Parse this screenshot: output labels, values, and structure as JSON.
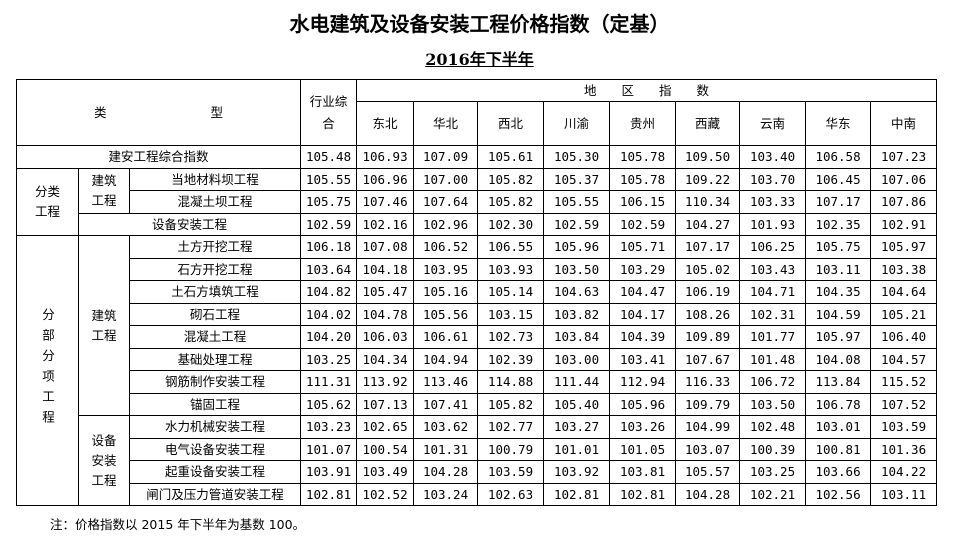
{
  "title": "水电建筑及设备安装工程价格指数（定基）",
  "subtitle": "2016年下半年",
  "header": {
    "type_col": [
      "类",
      "型"
    ],
    "industry": "行业综合",
    "region_group": "地　　区　　指　　数",
    "regions": [
      "东北",
      "华北",
      "西北",
      "川渝",
      "贵州",
      "西藏",
      "云南",
      "华东",
      "中南"
    ]
  },
  "groups": {
    "category": "分类工程",
    "sub_item": "分部分项工程",
    "building": "建筑工程",
    "equipment": "设备安装工程"
  },
  "rows": [
    {
      "name": "建安工程综合指数",
      "industry": "105.48",
      "values": [
        "106.93",
        "107.09",
        "105.61",
        "105.30",
        "105.78",
        "109.50",
        "103.40",
        "106.58",
        "107.23"
      ]
    },
    {
      "name": "当地材料坝工程",
      "industry": "105.55",
      "values": [
        "106.96",
        "107.00",
        "105.82",
        "105.37",
        "105.78",
        "109.22",
        "103.70",
        "106.45",
        "107.06"
      ]
    },
    {
      "name": "混凝土坝工程",
      "industry": "105.75",
      "values": [
        "107.46",
        "107.64",
        "105.82",
        "105.55",
        "106.15",
        "110.34",
        "103.33",
        "107.17",
        "107.86"
      ]
    },
    {
      "name": "设备安装工程",
      "industry": "102.59",
      "values": [
        "102.16",
        "102.96",
        "102.30",
        "102.59",
        "102.59",
        "104.27",
        "101.93",
        "102.35",
        "102.91"
      ]
    },
    {
      "name": "土方开挖工程",
      "industry": "106.18",
      "values": [
        "107.08",
        "106.52",
        "106.55",
        "105.96",
        "105.71",
        "107.17",
        "106.25",
        "105.75",
        "105.97"
      ]
    },
    {
      "name": "石方开挖工程",
      "industry": "103.64",
      "values": [
        "104.18",
        "103.95",
        "103.93",
        "103.50",
        "103.29",
        "105.02",
        "103.43",
        "103.11",
        "103.38"
      ]
    },
    {
      "name": "土石方填筑工程",
      "industry": "104.82",
      "values": [
        "105.47",
        "105.16",
        "105.14",
        "104.63",
        "104.47",
        "106.19",
        "104.71",
        "104.35",
        "104.64"
      ]
    },
    {
      "name": "砌石工程",
      "industry": "104.02",
      "values": [
        "104.78",
        "105.56",
        "103.15",
        "103.82",
        "104.17",
        "108.26",
        "102.31",
        "104.59",
        "105.21"
      ]
    },
    {
      "name": "混凝土工程",
      "industry": "104.20",
      "values": [
        "106.03",
        "106.61",
        "102.73",
        "103.84",
        "104.39",
        "109.89",
        "101.77",
        "105.97",
        "106.40"
      ]
    },
    {
      "name": "基础处理工程",
      "industry": "103.25",
      "values": [
        "104.34",
        "104.94",
        "102.39",
        "103.00",
        "103.41",
        "107.67",
        "101.48",
        "104.08",
        "104.57"
      ]
    },
    {
      "name": "钢筋制作安装工程",
      "industry": "111.31",
      "values": [
        "113.92",
        "113.46",
        "114.88",
        "111.44",
        "112.94",
        "116.33",
        "106.72",
        "113.84",
        "115.52"
      ]
    },
    {
      "name": "锚固工程",
      "industry": "105.62",
      "values": [
        "107.13",
        "107.41",
        "105.82",
        "105.40",
        "105.96",
        "109.79",
        "103.50",
        "106.78",
        "107.52"
      ]
    },
    {
      "name": "水力机械安装工程",
      "industry": "103.23",
      "values": [
        "102.65",
        "103.62",
        "102.77",
        "103.27",
        "103.26",
        "104.99",
        "102.48",
        "103.01",
        "103.59"
      ]
    },
    {
      "name": "电气设备安装工程",
      "industry": "101.07",
      "values": [
        "100.54",
        "101.31",
        "100.79",
        "101.01",
        "101.05",
        "103.07",
        "100.39",
        "100.81",
        "101.36"
      ]
    },
    {
      "name": "起重设备安装工程",
      "industry": "103.91",
      "values": [
        "103.49",
        "104.28",
        "103.59",
        "103.92",
        "103.81",
        "105.57",
        "103.25",
        "103.66",
        "104.22"
      ]
    },
    {
      "name": "闸门及压力管道安装工程",
      "industry": "102.81",
      "values": [
        "102.52",
        "103.24",
        "102.63",
        "102.81",
        "102.81",
        "104.28",
        "102.21",
        "102.56",
        "103.11"
      ]
    }
  ],
  "note": "注：价格指数以 2015 年下半年为基数 100。"
}
